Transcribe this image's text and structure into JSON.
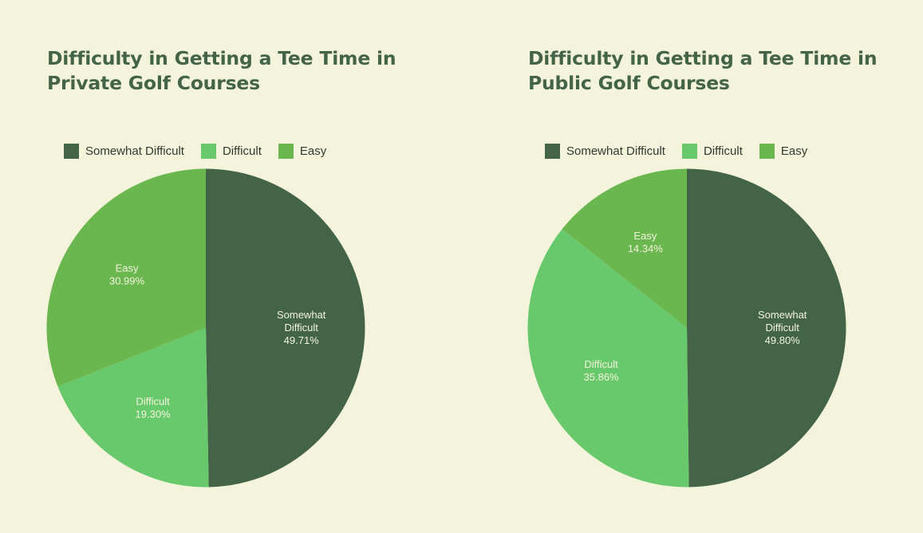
{
  "colors": {
    "background": "#f4f3dc",
    "title": "#436446",
    "somewhat_difficult": "#436446",
    "difficult": "#68c96c",
    "easy": "#6bb74f",
    "slice_text": "#f4f3dc"
  },
  "chart_data": [
    {
      "type": "pie",
      "title": "Difficulty in Getting a Tee Time in Private Golf Courses",
      "legend_position": "top-left",
      "legend": [
        "Somewhat Difficult",
        "Difficult",
        "Easy"
      ],
      "slices": [
        {
          "label": "Somewhat Difficult",
          "value": 49.71,
          "display": "49.71%",
          "label_lines": [
            "Somewhat",
            "Difficult",
            "49.71%"
          ],
          "color": "#436446"
        },
        {
          "label": "Difficult",
          "value": 19.3,
          "display": "19.30%",
          "label_lines": [
            "Difficult",
            "19.30%"
          ],
          "color": "#68c96c"
        },
        {
          "label": "Easy",
          "value": 30.99,
          "display": "30.99%",
          "label_lines": [
            "Easy",
            "30.99%"
          ],
          "color": "#6bb74f"
        }
      ]
    },
    {
      "type": "pie",
      "title": "Difficulty in Getting a Tee Time in Public Golf Courses",
      "legend_position": "top-left",
      "legend": [
        "Somewhat Difficult",
        "Difficult",
        "Easy"
      ],
      "slices": [
        {
          "label": "Somewhat Difficult",
          "value": 49.8,
          "display": "49.80%",
          "label_lines": [
            "Somewhat",
            "Difficult",
            "49.80%"
          ],
          "color": "#436446"
        },
        {
          "label": "Difficult",
          "value": 35.86,
          "display": "35.86%",
          "label_lines": [
            "Difficult",
            "35.86%"
          ],
          "color": "#68c96c"
        },
        {
          "label": "Easy",
          "value": 14.34,
          "display": "14.34%",
          "label_lines": [
            "Easy",
            "14.34%"
          ],
          "color": "#6bb74f"
        }
      ]
    }
  ]
}
